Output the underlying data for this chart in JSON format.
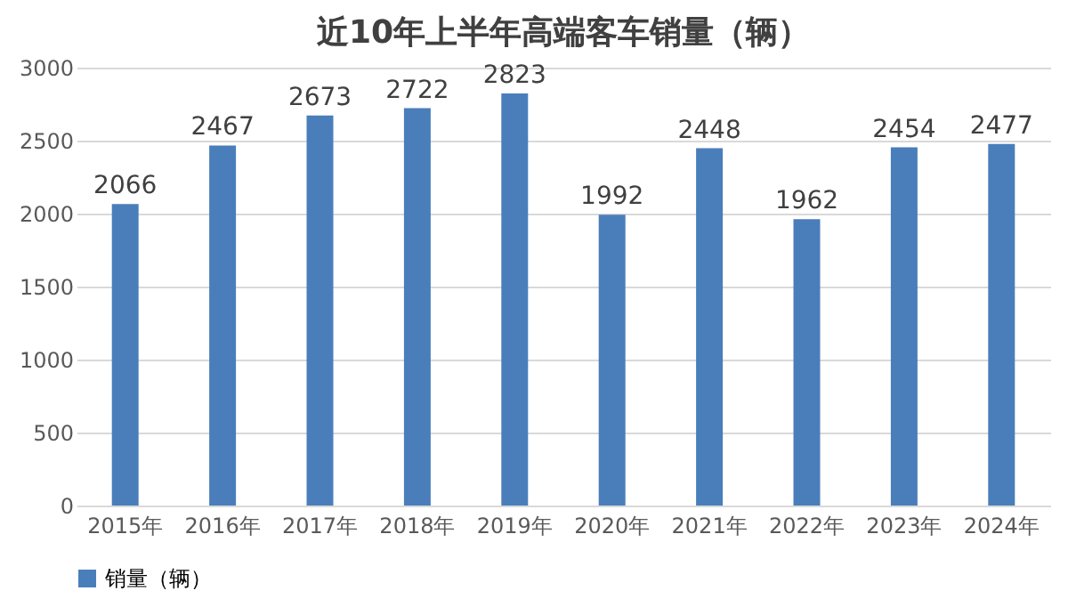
{
  "chart_data": {
    "type": "bar",
    "title": "近10年上半年高端客车销量（辆）",
    "categories": [
      "2015年",
      "2016年",
      "2017年",
      "2018年",
      "2019年",
      "2020年",
      "2021年",
      "2022年",
      "2023年",
      "2024年"
    ],
    "series": [
      {
        "name": "销量（辆）",
        "color": "#4a7ebb",
        "values": [
          2066,
          2467,
          2673,
          2722,
          2823,
          1992,
          2448,
          1962,
          2454,
          2477
        ]
      }
    ],
    "ylim": [
      0,
      3000
    ],
    "yticks": [
      0,
      500,
      1000,
      1500,
      2000,
      2500,
      3000
    ],
    "grid": "y",
    "legend": "bottom",
    "data_labels": true
  }
}
